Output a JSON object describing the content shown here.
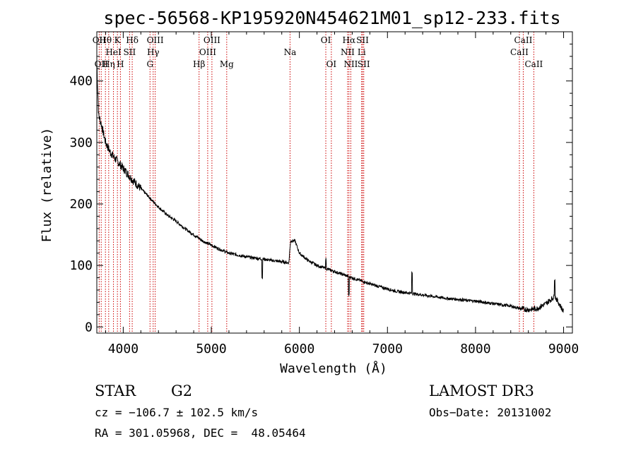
{
  "chart_data": {
    "type": "line",
    "title": "spec-56568-KP195920N454621M01_sp12-233.fits",
    "xlabel": "Wavelength (Å)",
    "ylabel": "Flux (relative)",
    "xlim": [
      3700,
      9100
    ],
    "ylim": [
      -10,
      480
    ],
    "x_ticks": [
      4000,
      5000,
      6000,
      7000,
      8000,
      9000
    ],
    "y_ticks": [
      0,
      100,
      200,
      300,
      400
    ],
    "series": [
      {
        "name": "spectrum",
        "anchors": [
          [
            3700,
            430
          ],
          [
            3720,
            345
          ],
          [
            3750,
            330
          ],
          [
            3800,
            300
          ],
          [
            3850,
            285
          ],
          [
            3900,
            275
          ],
          [
            4000,
            258
          ],
          [
            4100,
            240
          ],
          [
            4200,
            225
          ],
          [
            4300,
            210
          ],
          [
            4400,
            195
          ],
          [
            4500,
            182
          ],
          [
            4600,
            172
          ],
          [
            4700,
            160
          ],
          [
            4800,
            150
          ],
          [
            4900,
            140
          ],
          [
            5000,
            133
          ],
          [
            5100,
            126
          ],
          [
            5200,
            120
          ],
          [
            5300,
            117
          ],
          [
            5400,
            114
          ],
          [
            5500,
            112
          ],
          [
            5600,
            110
          ],
          [
            5700,
            108
          ],
          [
            5800,
            106
          ],
          [
            5880,
            104
          ],
          [
            5900,
            140
          ],
          [
            5950,
            140
          ],
          [
            6000,
            120
          ],
          [
            6100,
            108
          ],
          [
            6200,
            100
          ],
          [
            6300,
            95
          ],
          [
            6400,
            90
          ],
          [
            6500,
            85
          ],
          [
            6600,
            80
          ],
          [
            6700,
            75
          ],
          [
            6800,
            70
          ],
          [
            6900,
            66
          ],
          [
            7000,
            62
          ],
          [
            7100,
            58
          ],
          [
            7200,
            56
          ],
          [
            7300,
            54
          ],
          [
            7400,
            52
          ],
          [
            7500,
            50
          ],
          [
            7600,
            48
          ],
          [
            7700,
            46
          ],
          [
            7800,
            45
          ],
          [
            7900,
            43
          ],
          [
            8000,
            42
          ],
          [
            8100,
            40
          ],
          [
            8200,
            38
          ],
          [
            8300,
            36
          ],
          [
            8400,
            34
          ],
          [
            8500,
            30
          ],
          [
            8600,
            28
          ],
          [
            8700,
            30
          ],
          [
            8800,
            38
          ],
          [
            8900,
            50
          ],
          [
            8960,
            35
          ],
          [
            9000,
            25
          ]
        ],
        "features": [
          {
            "x": 5577,
            "dy": -30
          },
          {
            "x": 6300,
            "dy": 15
          },
          {
            "x": 6563,
            "dy": -30
          },
          {
            "x": 7280,
            "dy": 35
          },
          {
            "x": 8900,
            "dy": 30
          }
        ]
      }
    ],
    "line_markers": [
      {
        "x": 3727,
        "label": "OII",
        "row": 1
      },
      {
        "x": 3750,
        "label": "OII",
        "row": 3
      },
      {
        "x": 3798,
        "label": "Hθ",
        "row": 1
      },
      {
        "x": 3835,
        "label": "Hη",
        "row": 3
      },
      {
        "x": 3889,
        "label": "HeI",
        "row": 2
      },
      {
        "x": 3934,
        "label": "K",
        "row": 1
      },
      {
        "x": 3968,
        "label": "H",
        "row": 3
      },
      {
        "x": 4072,
        "label": "SII",
        "row": 2
      },
      {
        "x": 4102,
        "label": "Hδ",
        "row": 1
      },
      {
        "x": 4304,
        "label": "G",
        "row": 3
      },
      {
        "x": 4340,
        "label": "Hγ",
        "row": 2
      },
      {
        "x": 4363,
        "label": "OIII",
        "row": 1
      },
      {
        "x": 4861,
        "label": "Hβ",
        "row": 3
      },
      {
        "x": 4959,
        "label": "OIII",
        "row": 2
      },
      {
        "x": 5007,
        "label": "OIII",
        "row": 1
      },
      {
        "x": 5175,
        "label": "Mg",
        "row": 3
      },
      {
        "x": 5894,
        "label": "Na",
        "row": 2
      },
      {
        "x": 6300,
        "label": "OI",
        "row": 1
      },
      {
        "x": 6363,
        "label": "OI",
        "row": 3
      },
      {
        "x": 6548,
        "label": "NII",
        "row": 2
      },
      {
        "x": 6563,
        "label": "Hα",
        "row": 1
      },
      {
        "x": 6584,
        "label": "NII",
        "row": 3
      },
      {
        "x": 6707,
        "label": "Li",
        "row": 2
      },
      {
        "x": 6717,
        "label": "SII",
        "row": 1
      },
      {
        "x": 6731,
        "label": "SII",
        "row": 3
      },
      {
        "x": 8498,
        "label": "CaII",
        "row": 2
      },
      {
        "x": 8542,
        "label": "CaII",
        "row": 1
      },
      {
        "x": 8662,
        "label": "CaII",
        "row": 3
      }
    ]
  },
  "info": {
    "class": "STAR",
    "subclass": "G2",
    "survey": "LAMOST DR3",
    "cz": "cz = −106.7 ± 102.5 km/s",
    "obs_date": "Obs−Date: 20131002",
    "coords": "RA = 301.05968, DEC =  48.05464"
  },
  "colors": {
    "marker": "#cc0000",
    "spectrum": "#000000",
    "axes": "#000000"
  }
}
